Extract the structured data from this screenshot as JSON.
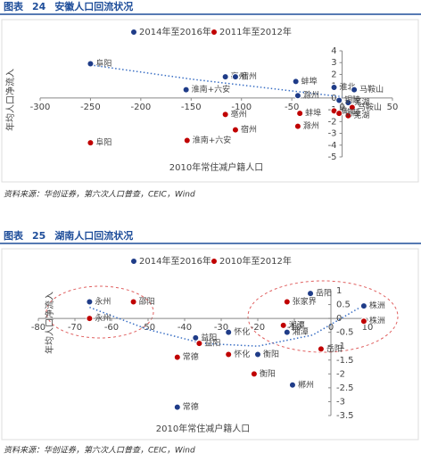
{
  "chart_data": [
    {
      "type": "scatter",
      "label": "图表",
      "number": "24",
      "title": "安徽人口回流状况",
      "xlabel": "2010年常住减户籍人口",
      "ylabel": "年均人口净流入",
      "source": "资料来源：华创证券，第六次人口普查，CEIC，Wind",
      "xlim": [
        -300,
        50
      ],
      "xticks": [
        -300,
        -250,
        -200,
        -150,
        -100,
        -50,
        0,
        50
      ],
      "ylim": [
        -5,
        4
      ],
      "yticks": [
        4,
        3,
        2,
        1,
        0,
        -1,
        -2,
        -3,
        -4,
        -5
      ],
      "series": [
        {
          "name": "2014年至2016年",
          "color": "#1f3c88",
          "x": [
            -250,
            -155,
            -116,
            -106,
            -46,
            -44,
            -8,
            12,
            6,
            -3
          ],
          "values": [
            2.9,
            0.7,
            1.8,
            1.8,
            1.4,
            0.2,
            0.9,
            0.7,
            -0.4,
            -0.2
          ],
          "labels": [
            "阜阳",
            "淮南+六安",
            "亳州",
            "宿州",
            "蚌埠",
            "滁州",
            "淮北",
            "马鞍山",
            "芜湖",
            "铜陵"
          ]
        },
        {
          "name": "2011年至2012年",
          "color": "#c00000",
          "x": [
            -250,
            -154,
            -116,
            -106,
            -42,
            -44,
            -8,
            10,
            6,
            -3
          ],
          "values": [
            -3.8,
            -3.6,
            -1.4,
            -2.7,
            -1.3,
            -2.4,
            -1.1,
            -0.8,
            -1.5,
            -1.3
          ],
          "labels": [
            "阜阳",
            "淮南+六安",
            "亳州",
            "宿州",
            "蚌埠",
            "滁州",
            "淮北",
            "马鞍山",
            "芜湖",
            "铜陵"
          ]
        }
      ],
      "trendline": {
        "x": [
          -250,
          -150,
          -50,
          0
        ],
        "y": [
          2.8,
          1.6,
          0.6,
          0.1
        ]
      }
    },
    {
      "type": "scatter",
      "label": "图表",
      "number": "25",
      "title": "湖南人口回流状况",
      "xlabel": "2010年常住减户籍人口",
      "ylabel": "年均人口净流入",
      "source": "资料来源：华创证券，第六次人口普查，CEIC，Wind",
      "xlim": [
        -80,
        10
      ],
      "xticks": [
        -80,
        -70,
        -60,
        -50,
        -40,
        -30,
        -20,
        -10,
        0,
        10
      ],
      "ylim": [
        -3.5,
        1
      ],
      "yticks": [
        1,
        0.5,
        0,
        -0.5,
        -1,
        -1.5,
        -2,
        -2.5,
        -3,
        -3.5
      ],
      "series": [
        {
          "name": "2014年至2016年",
          "color": "#1f3c88",
          "x": [
            -66,
            -37,
            -28,
            -42,
            -20,
            -10.5,
            -5.6,
            9,
            -12
          ],
          "values": [
            0.6,
            -0.7,
            -0.5,
            -3.2,
            -1.3,
            -2.4,
            0.9,
            0.45,
            -0.5
          ],
          "labels": [
            "永州",
            "益阳",
            "怀化",
            "常德",
            "衡阳",
            "郴州",
            "岳阳",
            "株洲",
            "湘潭"
          ]
        },
        {
          "name": "2010年至2012年",
          "color": "#c00000",
          "x": [
            -66,
            -54,
            -36,
            -42,
            -28,
            -21,
            -2.7,
            -12,
            -13,
            9
          ],
          "values": [
            0.0,
            0.6,
            -0.9,
            -1.4,
            -1.3,
            -2.0,
            -1.1,
            0.6,
            -0.25,
            -0.1
          ],
          "labels": [
            "永州",
            "邵阳",
            "益阳",
            "常德",
            "怀化",
            "衡阳",
            "岳阳",
            "张家界",
            "湘潭",
            "株洲"
          ]
        }
      ],
      "trendline": {
        "x": [
          -66,
          -50,
          -35,
          -20,
          -5,
          8
        ],
        "y": [
          0.4,
          -0.4,
          -0.9,
          -1.0,
          -0.6,
          0.4
        ]
      }
    }
  ]
}
